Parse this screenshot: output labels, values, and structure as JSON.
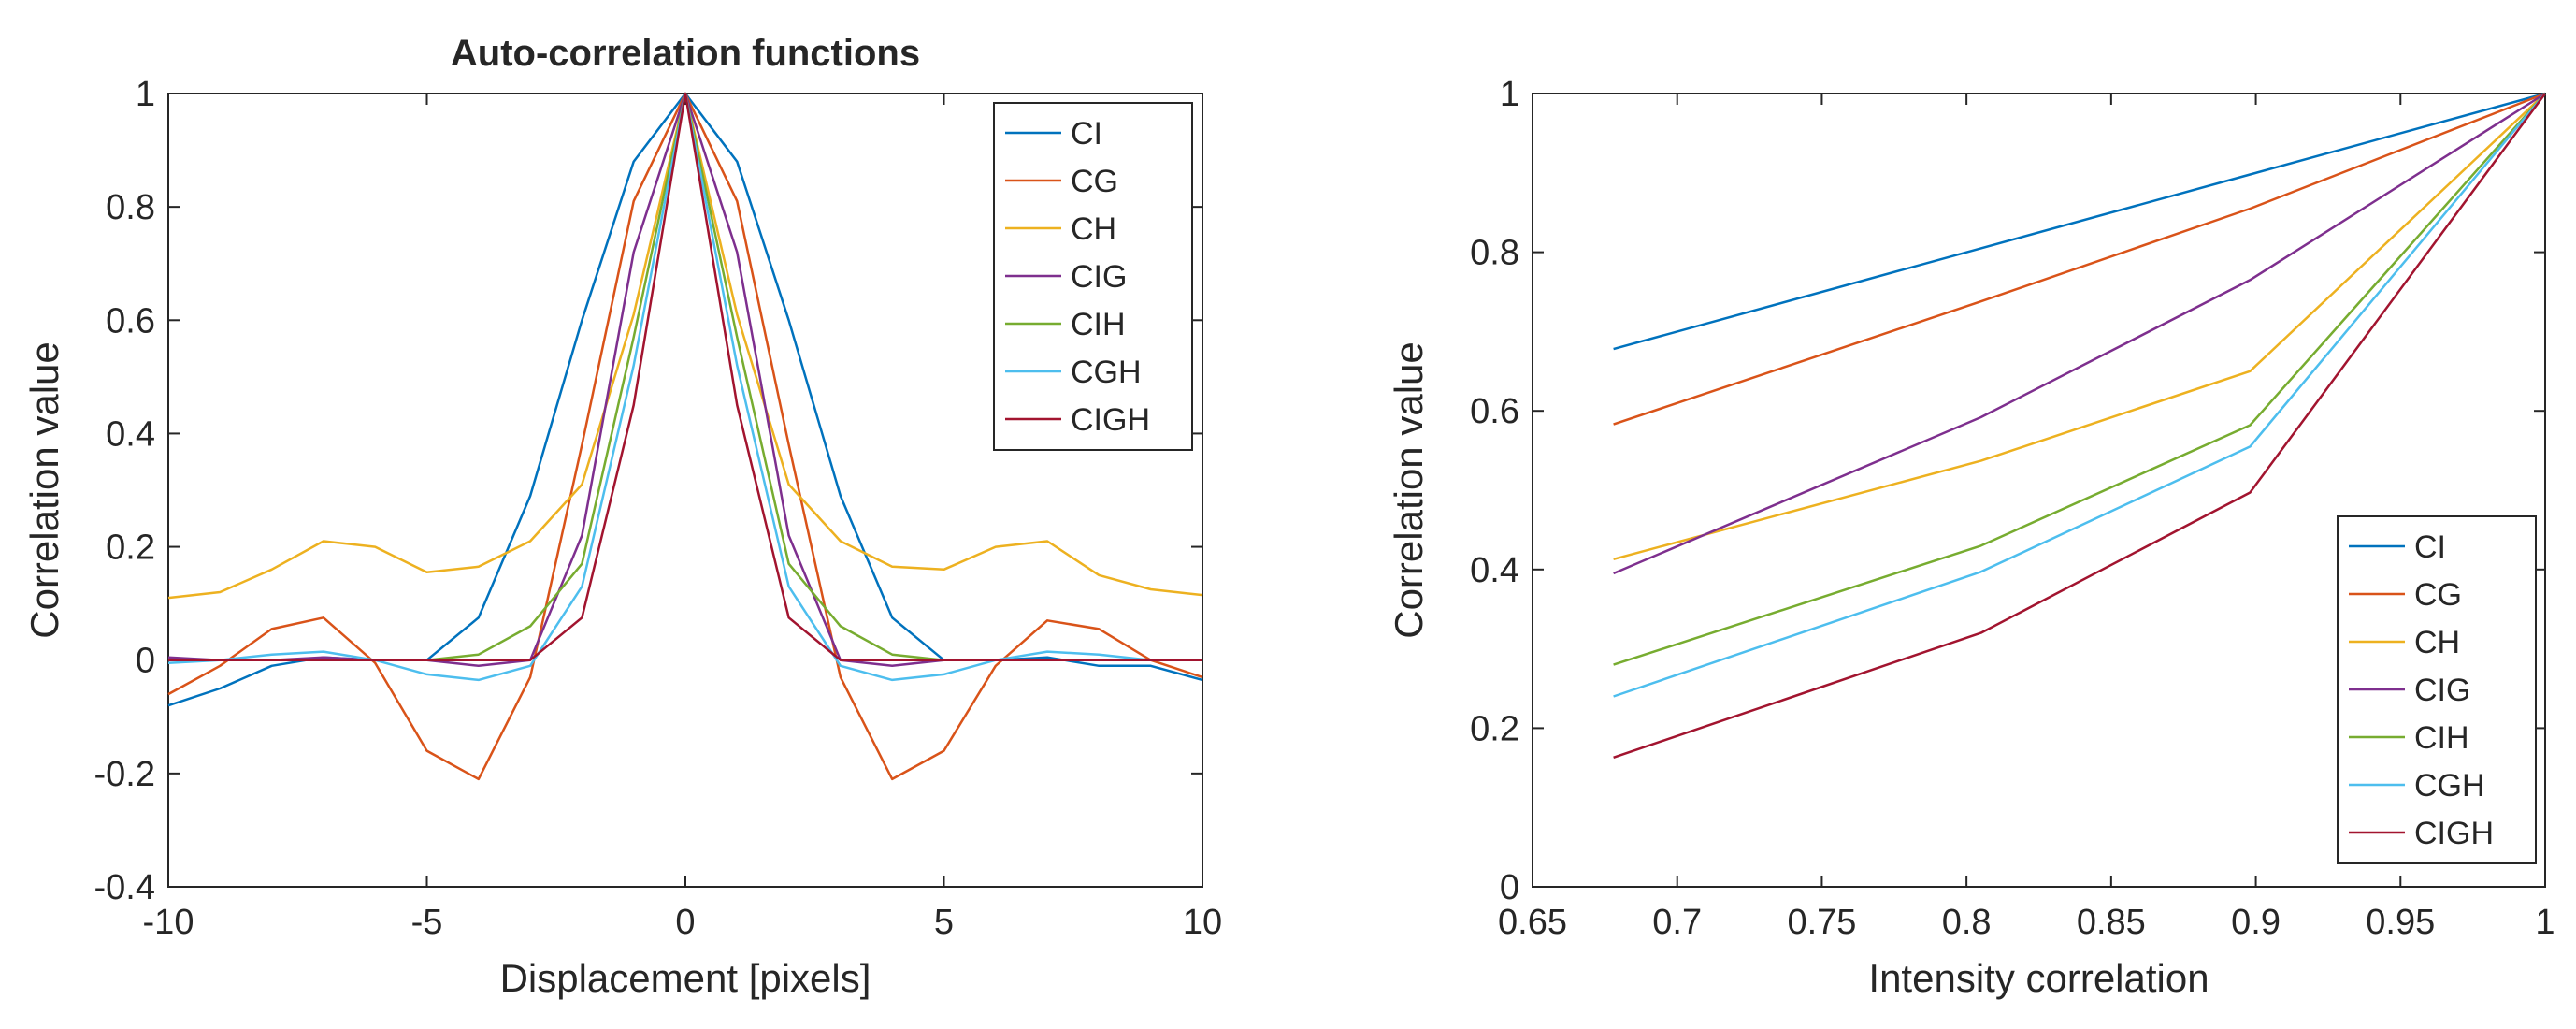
{
  "chart_data": [
    {
      "type": "line",
      "title": "Auto-correlation functions",
      "xlabel": "Displacement [pixels]",
      "ylabel": "Correlation value",
      "xlim": [
        -10,
        10
      ],
      "ylim": [
        -0.4,
        1
      ],
      "xticks": [
        -10,
        -5,
        0,
        5,
        10
      ],
      "xtick_labels": [
        "-10",
        "-5",
        "0",
        "5",
        "10"
      ],
      "yticks": [
        -0.4,
        -0.2,
        0,
        0.2,
        0.4,
        0.6,
        0.8,
        1
      ],
      "ytick_labels": [
        "-0.4",
        "-0.2",
        "0",
        "0.2",
        "0.4",
        "0.6",
        "0.8",
        "1"
      ],
      "legend_position": "top-right",
      "x": [
        -10,
        -9,
        -8,
        -7,
        -6,
        -5,
        -4,
        -3,
        -2,
        -1,
        0,
        1,
        2,
        3,
        4,
        5,
        6,
        7,
        8,
        9,
        10
      ],
      "series": [
        {
          "name": "CI",
          "color": "#0072BD",
          "values": [
            -0.08,
            -0.05,
            -0.01,
            0.005,
            0.0,
            0.0,
            0.075,
            0.29,
            0.6,
            0.88,
            1.0,
            0.88,
            0.6,
            0.29,
            0.075,
            0.0,
            0.0,
            0.005,
            -0.01,
            -0.01,
            -0.035
          ]
        },
        {
          "name": "CG",
          "color": "#D95319",
          "values": [
            -0.06,
            -0.01,
            0.055,
            0.075,
            -0.005,
            -0.16,
            -0.21,
            -0.03,
            0.38,
            0.81,
            1.0,
            0.81,
            0.38,
            -0.03,
            -0.21,
            -0.16,
            -0.01,
            0.07,
            0.055,
            0.0,
            -0.03
          ]
        },
        {
          "name": "CH",
          "color": "#EDB120",
          "values": [
            0.11,
            0.12,
            0.16,
            0.21,
            0.2,
            0.155,
            0.165,
            0.21,
            0.31,
            0.61,
            1.0,
            0.61,
            0.31,
            0.21,
            0.165,
            0.16,
            0.2,
            0.21,
            0.15,
            0.125,
            0.115
          ]
        },
        {
          "name": "CIG",
          "color": "#7E2F8E",
          "values": [
            0.005,
            0.0,
            0.0,
            0.005,
            0.0,
            0.0,
            -0.01,
            0.0,
            0.22,
            0.72,
            1.0,
            0.72,
            0.22,
            0.0,
            -0.01,
            0.0,
            0.0,
            0.0,
            0.0,
            0.0,
            0.0
          ]
        },
        {
          "name": "CIH",
          "color": "#77AC30",
          "values": [
            0.0,
            0.0,
            0.0,
            0.0,
            0.0,
            0.0,
            0.01,
            0.06,
            0.17,
            0.57,
            1.0,
            0.57,
            0.17,
            0.06,
            0.01,
            0.0,
            0.0,
            0.0,
            0.0,
            0.0,
            0.0
          ]
        },
        {
          "name": "CGH",
          "color": "#4DBEEE",
          "values": [
            -0.005,
            0.0,
            0.01,
            0.015,
            0.0,
            -0.025,
            -0.035,
            -0.01,
            0.13,
            0.52,
            1.0,
            0.52,
            0.13,
            -0.01,
            -0.035,
            -0.025,
            0.0,
            0.015,
            0.01,
            0.0,
            0.0
          ]
        },
        {
          "name": "CIGH",
          "color": "#A2142F",
          "values": [
            0.0,
            0.0,
            0.0,
            0.0,
            0.0,
            0.0,
            0.0,
            0.0,
            0.075,
            0.45,
            1.0,
            0.45,
            0.075,
            0.0,
            0.0,
            0.0,
            0.0,
            0.0,
            0.0,
            0.0,
            0.0
          ]
        }
      ]
    },
    {
      "type": "line",
      "title": "",
      "xlabel": "Intensity correlation",
      "ylabel": "Correlation value",
      "xlim": [
        0.65,
        1
      ],
      "ylim": [
        0,
        1
      ],
      "xticks": [
        0.65,
        0.7,
        0.75,
        0.8,
        0.85,
        0.9,
        0.95,
        1
      ],
      "xtick_labels": [
        "0.65",
        "0.7",
        "0.75",
        "0.8",
        "0.85",
        "0.9",
        "0.95",
        "1"
      ],
      "yticks": [
        0,
        0.2,
        0.4,
        0.6,
        0.8,
        1
      ],
      "ytick_labels": [
        "0",
        "0.2",
        "0.4",
        "0.6",
        "0.8",
        "1"
      ],
      "legend_position": "bottom-right",
      "x": [
        0.678,
        0.805,
        0.898,
        1.0
      ],
      "series": [
        {
          "name": "CI",
          "color": "#0072BD",
          "values": [
            0.678,
            0.805,
            0.898,
            1.0
          ]
        },
        {
          "name": "CG",
          "color": "#D95319",
          "values": [
            0.583,
            0.738,
            0.855,
            1.0
          ]
        },
        {
          "name": "CH",
          "color": "#EDB120",
          "values": [
            0.413,
            0.537,
            0.65,
            1.0
          ]
        },
        {
          "name": "CIG",
          "color": "#7E2F8E",
          "values": [
            0.395,
            0.592,
            0.765,
            1.0
          ]
        },
        {
          "name": "CIH",
          "color": "#77AC30",
          "values": [
            0.28,
            0.43,
            0.582,
            1.0
          ]
        },
        {
          "name": "CGH",
          "color": "#4DBEEE",
          "values": [
            0.24,
            0.397,
            0.555,
            1.0
          ]
        },
        {
          "name": "CIGH",
          "color": "#A2142F",
          "values": [
            0.163,
            0.32,
            0.497,
            1.0
          ]
        }
      ]
    }
  ]
}
